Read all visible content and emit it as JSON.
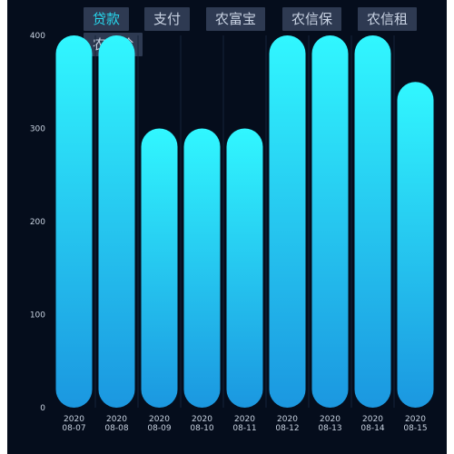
{
  "legend": {
    "buttons": [
      {
        "label": "贷款",
        "active": true
      },
      {
        "label": "支付",
        "active": false
      },
      {
        "label": "农富宝",
        "active": false
      },
      {
        "label": "农信保",
        "active": false
      },
      {
        "label": "农信租",
        "active": false
      },
      {
        "label": "农信险",
        "active": false
      }
    ]
  },
  "colors": {
    "background": "#050d1c",
    "bar_top": "#31f7ff",
    "bar_bottom": "#1b97e0",
    "legend_bg": "#2e3a52",
    "legend_text": "#c9d3e3",
    "legend_active_text": "#27d8ee",
    "grid": "#15243a"
  },
  "chart_data": {
    "type": "bar",
    "categories": [
      [
        "2020",
        "08-07"
      ],
      [
        "2020",
        "08-08"
      ],
      [
        "2020",
        "08-09"
      ],
      [
        "2020",
        "08-10"
      ],
      [
        "2020",
        "08-11"
      ],
      [
        "2020",
        "08-12"
      ],
      [
        "2020",
        "08-13"
      ],
      [
        "2020",
        "08-14"
      ],
      [
        "2020",
        "08-15"
      ]
    ],
    "series": [
      {
        "values": [
          400,
          400,
          300,
          300,
          300,
          400,
          400,
          400,
          350
        ]
      }
    ],
    "ylim": [
      0,
      400
    ],
    "yticks": [
      0,
      100,
      200,
      300,
      400
    ],
    "grid": "vertical separators",
    "legend_position": "top"
  }
}
